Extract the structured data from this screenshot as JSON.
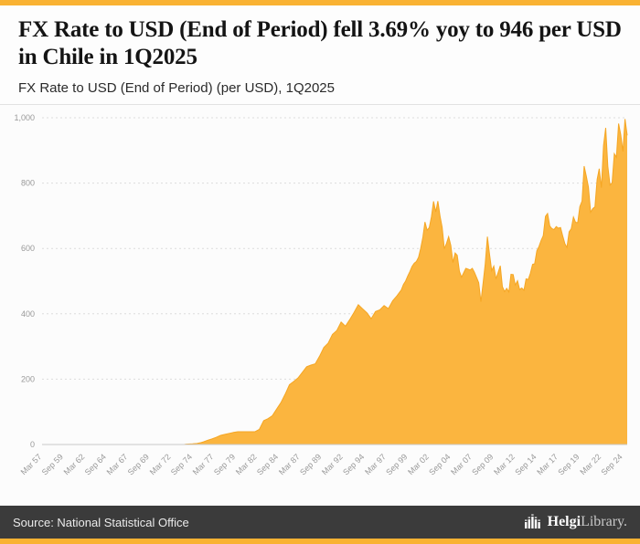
{
  "header": {
    "title": "FX Rate to USD (End of Period) fell 3.69% yoy to 946 per USD in Chile in 1Q2025",
    "subtitle": "FX Rate to USD (End of Period) (per USD), 1Q2025"
  },
  "footer": {
    "source": "Source: National Statistical Office",
    "brand_bold": "Helgi",
    "brand_rest": "Library."
  },
  "colors": {
    "accent": "#F9B233",
    "area_fill": "#FBB53F",
    "area_line": "#F5A623",
    "footer_bg": "#3b3b3b",
    "grid": "#dcdcdc",
    "axis_text": "#999999"
  },
  "chart_data": {
    "type": "area",
    "title": "FX Rate to USD (End of Period) (per USD), 1Q2025",
    "xlabel": "",
    "ylabel": "",
    "grid": true,
    "legend": false,
    "ylim": [
      0,
      1000
    ],
    "yticks": [
      0,
      200,
      400,
      600,
      800,
      1000
    ],
    "ytick_labels": [
      "0",
      "200",
      "400",
      "600",
      "800",
      "1,000"
    ],
    "xlim": [
      1957.25,
      2025.25
    ],
    "xticks": [
      1957.25,
      1959.75,
      1962.25,
      1964.75,
      1967.25,
      1969.75,
      1972.25,
      1974.75,
      1977.25,
      1979.75,
      1982.25,
      1984.75,
      1987.25,
      1989.75,
      1992.25,
      1994.75,
      1997.25,
      1999.75,
      2002.25,
      2004.75,
      2007.25,
      2009.75,
      2012.25,
      2014.75,
      2017.25,
      2019.75,
      2022.25,
      2024.75
    ],
    "xtick_labels": [
      "Mar 57",
      "Sep 59",
      "Mar 62",
      "Sep 64",
      "Mar 67",
      "Sep 69",
      "Mar 72",
      "Sep 74",
      "Mar 77",
      "Sep 79",
      "Mar 82",
      "Sep 84",
      "Mar 87",
      "Sep 89",
      "Mar 92",
      "Sep 94",
      "Mar 97",
      "Sep 99",
      "Mar 02",
      "Sep 04",
      "Mar 07",
      "Sep 09",
      "Mar 12",
      "Sep 14",
      "Mar 17",
      "Sep 19",
      "Mar 22",
      "Sep 24"
    ],
    "latest_value": 946,
    "latest_period": "1Q2025",
    "yoy_change_pct": -3.69,
    "series": [
      {
        "name": "FX Rate to USD (End of Period), Chile",
        "points": [
          [
            1957.25,
            0
          ],
          [
            1960,
            0
          ],
          [
            1963,
            0
          ],
          [
            1966,
            0
          ],
          [
            1969,
            0
          ],
          [
            1971,
            0
          ],
          [
            1973,
            0
          ],
          [
            1973.75,
            0
          ],
          [
            1974,
            1
          ],
          [
            1974.75,
            2
          ],
          [
            1975.25,
            3
          ],
          [
            1975.75,
            6
          ],
          [
            1976,
            8
          ],
          [
            1976.5,
            13
          ],
          [
            1977,
            17
          ],
          [
            1977.5,
            22
          ],
          [
            1978,
            28
          ],
          [
            1978.5,
            31
          ],
          [
            1979,
            34
          ],
          [
            1979.5,
            37
          ],
          [
            1980,
            39
          ],
          [
            1981,
            39
          ],
          [
            1982,
            39
          ],
          [
            1982.5,
            46
          ],
          [
            1983,
            73
          ],
          [
            1983.5,
            79
          ],
          [
            1984,
            88
          ],
          [
            1984.5,
            108
          ],
          [
            1985,
            128
          ],
          [
            1985.5,
            154
          ],
          [
            1986,
            183
          ],
          [
            1986.5,
            193
          ],
          [
            1987,
            204
          ],
          [
            1987.5,
            221
          ],
          [
            1988,
            238
          ],
          [
            1988.5,
            243
          ],
          [
            1989,
            247
          ],
          [
            1989.5,
            270
          ],
          [
            1990,
            297
          ],
          [
            1990.5,
            310
          ],
          [
            1991,
            337
          ],
          [
            1991.5,
            349
          ],
          [
            1992,
            375
          ],
          [
            1992.5,
            362
          ],
          [
            1993,
            382
          ],
          [
            1993.5,
            404
          ],
          [
            1994,
            428
          ],
          [
            1994.5,
            415
          ],
          [
            1995,
            403
          ],
          [
            1995.5,
            385
          ],
          [
            1996,
            407
          ],
          [
            1996.5,
            412
          ],
          [
            1997,
            425
          ],
          [
            1997.5,
            416
          ],
          [
            1998,
            440
          ],
          [
            1998.5,
            455
          ],
          [
            1999,
            473
          ],
          [
            1999.25,
            490
          ],
          [
            1999.5,
            500
          ],
          [
            1999.75,
            516
          ],
          [
            2000,
            530
          ],
          [
            2000.25,
            545
          ],
          [
            2000.5,
            555
          ],
          [
            2000.75,
            560
          ],
          [
            2001,
            573
          ],
          [
            2001.25,
            600
          ],
          [
            2001.5,
            634
          ],
          [
            2001.75,
            681
          ],
          [
            2002,
            656
          ],
          [
            2002.25,
            664
          ],
          [
            2002.5,
            697
          ],
          [
            2002.75,
            744
          ],
          [
            2003,
            712
          ],
          [
            2003.25,
            745
          ],
          [
            2003.5,
            699
          ],
          [
            2003.75,
            665
          ],
          [
            2004,
            599
          ],
          [
            2004.25,
            616
          ],
          [
            2004.5,
            636
          ],
          [
            2004.75,
            609
          ],
          [
            2005,
            557
          ],
          [
            2005.25,
            586
          ],
          [
            2005.5,
            579
          ],
          [
            2005.75,
            530
          ],
          [
            2006,
            512
          ],
          [
            2006.25,
            526
          ],
          [
            2006.5,
            539
          ],
          [
            2006.75,
            537
          ],
          [
            2007,
            534
          ],
          [
            2007.25,
            539
          ],
          [
            2007.5,
            527
          ],
          [
            2007.75,
            511
          ],
          [
            2008,
            495
          ],
          [
            2008.25,
            437
          ],
          [
            2008.5,
            494
          ],
          [
            2008.75,
            552
          ],
          [
            2009,
            636
          ],
          [
            2009.25,
            583
          ],
          [
            2009.5,
            532
          ],
          [
            2009.75,
            546
          ],
          [
            2010,
            507
          ],
          [
            2010.25,
            526
          ],
          [
            2010.5,
            547
          ],
          [
            2010.75,
            483
          ],
          [
            2011,
            468
          ],
          [
            2011.25,
            478
          ],
          [
            2011.5,
            467
          ],
          [
            2011.75,
            521
          ],
          [
            2012,
            520
          ],
          [
            2012.25,
            488
          ],
          [
            2012.5,
            501
          ],
          [
            2012.75,
            474
          ],
          [
            2013,
            479
          ],
          [
            2013.25,
            472
          ],
          [
            2013.5,
            507
          ],
          [
            2013.75,
            505
          ],
          [
            2014,
            524
          ],
          [
            2014.25,
            551
          ],
          [
            2014.5,
            553
          ],
          [
            2014.75,
            593
          ],
          [
            2015,
            606
          ],
          [
            2015.25,
            625
          ],
          [
            2015.5,
            639
          ],
          [
            2015.75,
            698
          ],
          [
            2016,
            707
          ],
          [
            2016.25,
            669
          ],
          [
            2016.5,
            661
          ],
          [
            2016.75,
            658
          ],
          [
            2017,
            667
          ],
          [
            2017.25,
            662
          ],
          [
            2017.5,
            664
          ],
          [
            2017.75,
            639
          ],
          [
            2018,
            615
          ],
          [
            2018.25,
            603
          ],
          [
            2018.5,
            651
          ],
          [
            2018.75,
            660
          ],
          [
            2019,
            696
          ],
          [
            2019.25,
            680
          ],
          [
            2019.5,
            679
          ],
          [
            2019.75,
            728
          ],
          [
            2020,
            745
          ],
          [
            2020.25,
            852
          ],
          [
            2020.5,
            821
          ],
          [
            2020.75,
            788
          ],
          [
            2021,
            711
          ],
          [
            2021.25,
            722
          ],
          [
            2021.5,
            727
          ],
          [
            2021.75,
            811
          ],
          [
            2022,
            844
          ],
          [
            2022.25,
            786
          ],
          [
            2022.5,
            915
          ],
          [
            2022.75,
            969
          ],
          [
            2023,
            852
          ],
          [
            2023.25,
            794
          ],
          [
            2023.5,
            801
          ],
          [
            2023.75,
            890
          ],
          [
            2024,
            879
          ],
          [
            2024.25,
            982
          ],
          [
            2024.5,
            949
          ],
          [
            2024.75,
            897
          ],
          [
            2025,
            996
          ],
          [
            2025.25,
            946
          ]
        ]
      }
    ]
  }
}
